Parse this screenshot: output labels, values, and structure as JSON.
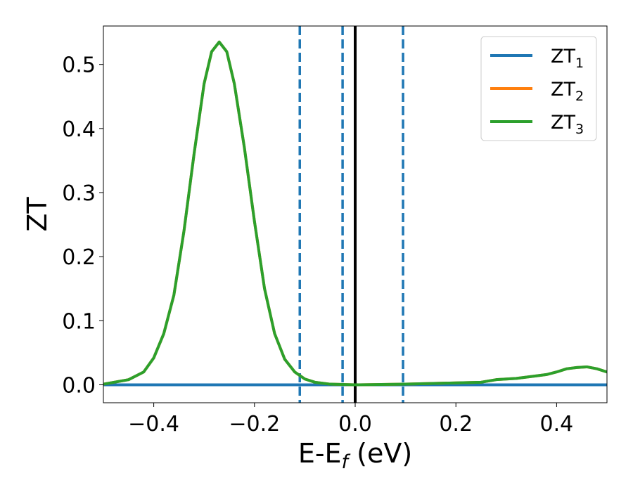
{
  "chart_data": {
    "type": "line",
    "xlabel": {
      "main": "E-E",
      "sub": "f",
      "suffix": " (eV)"
    },
    "ylabel": "ZT",
    "xlim": [
      -0.5,
      0.5
    ],
    "ylim": [
      -0.028,
      0.56
    ],
    "x_ticks": [
      -0.4,
      -0.2,
      0.0,
      0.2,
      0.4
    ],
    "x_tick_labels": [
      "−0.4",
      "−0.2",
      "0.0",
      "0.2",
      "0.4"
    ],
    "y_ticks": [
      0.0,
      0.1,
      0.2,
      0.3,
      0.4,
      0.5
    ],
    "y_tick_labels": [
      "0.0",
      "0.1",
      "0.2",
      "0.3",
      "0.4",
      "0.5"
    ],
    "grid": false,
    "legend_position": "top-right",
    "series": [
      {
        "name": {
          "main": "ZT",
          "sub": "1"
        },
        "color": "#1f77b4",
        "points": [
          [
            -0.5,
            0.0
          ],
          [
            0.5,
            0.0
          ]
        ]
      },
      {
        "name": {
          "main": "ZT",
          "sub": "2"
        },
        "color": "#ff7f0e",
        "points": [
          [
            -0.5,
            0.001
          ],
          [
            -0.45,
            0.008
          ],
          [
            -0.42,
            0.02
          ],
          [
            -0.4,
            0.042
          ],
          [
            -0.38,
            0.08
          ],
          [
            -0.36,
            0.14
          ],
          [
            -0.34,
            0.24
          ],
          [
            -0.32,
            0.36
          ],
          [
            -0.3,
            0.47
          ],
          [
            -0.285,
            0.52
          ],
          [
            -0.27,
            0.535
          ],
          [
            -0.255,
            0.52
          ],
          [
            -0.24,
            0.47
          ],
          [
            -0.22,
            0.37
          ],
          [
            -0.2,
            0.255
          ],
          [
            -0.18,
            0.15
          ],
          [
            -0.16,
            0.08
          ],
          [
            -0.14,
            0.04
          ],
          [
            -0.12,
            0.02
          ],
          [
            -0.1,
            0.009
          ],
          [
            -0.08,
            0.004
          ],
          [
            -0.05,
            0.001
          ],
          [
            0.0,
            0.0
          ],
          [
            0.1,
            0.001
          ],
          [
            0.2,
            0.003
          ],
          [
            0.25,
            0.004
          ],
          [
            0.28,
            0.008
          ],
          [
            0.32,
            0.01
          ],
          [
            0.36,
            0.014
          ],
          [
            0.38,
            0.016
          ],
          [
            0.4,
            0.02
          ],
          [
            0.42,
            0.025
          ],
          [
            0.44,
            0.027
          ],
          [
            0.46,
            0.028
          ],
          [
            0.48,
            0.025
          ],
          [
            0.5,
            0.02
          ]
        ]
      },
      {
        "name": {
          "main": "ZT",
          "sub": "3"
        },
        "color": "#2ca02c",
        "points": [
          [
            -0.5,
            0.001
          ],
          [
            -0.45,
            0.008
          ],
          [
            -0.42,
            0.02
          ],
          [
            -0.4,
            0.042
          ],
          [
            -0.38,
            0.08
          ],
          [
            -0.36,
            0.14
          ],
          [
            -0.34,
            0.24
          ],
          [
            -0.32,
            0.36
          ],
          [
            -0.3,
            0.47
          ],
          [
            -0.285,
            0.52
          ],
          [
            -0.27,
            0.535
          ],
          [
            -0.255,
            0.52
          ],
          [
            -0.24,
            0.47
          ],
          [
            -0.22,
            0.37
          ],
          [
            -0.2,
            0.255
          ],
          [
            -0.18,
            0.15
          ],
          [
            -0.16,
            0.08
          ],
          [
            -0.14,
            0.04
          ],
          [
            -0.12,
            0.02
          ],
          [
            -0.1,
            0.009
          ],
          [
            -0.08,
            0.004
          ],
          [
            -0.05,
            0.001
          ],
          [
            0.0,
            0.0
          ],
          [
            0.1,
            0.001
          ],
          [
            0.2,
            0.003
          ],
          [
            0.25,
            0.004
          ],
          [
            0.28,
            0.008
          ],
          [
            0.32,
            0.01
          ],
          [
            0.36,
            0.014
          ],
          [
            0.38,
            0.016
          ],
          [
            0.4,
            0.02
          ],
          [
            0.42,
            0.025
          ],
          [
            0.44,
            0.027
          ],
          [
            0.46,
            0.028
          ],
          [
            0.48,
            0.025
          ],
          [
            0.5,
            0.02
          ]
        ]
      }
    ],
    "vertical_lines": [
      {
        "x": -0.11,
        "style": "dashed",
        "color": "#1f77b4"
      },
      {
        "x": -0.025,
        "style": "dashed",
        "color": "#1f77b4"
      },
      {
        "x": 0.0,
        "style": "solid",
        "color": "#000000"
      },
      {
        "x": 0.095,
        "style": "dashed",
        "color": "#1f77b4"
      }
    ]
  }
}
